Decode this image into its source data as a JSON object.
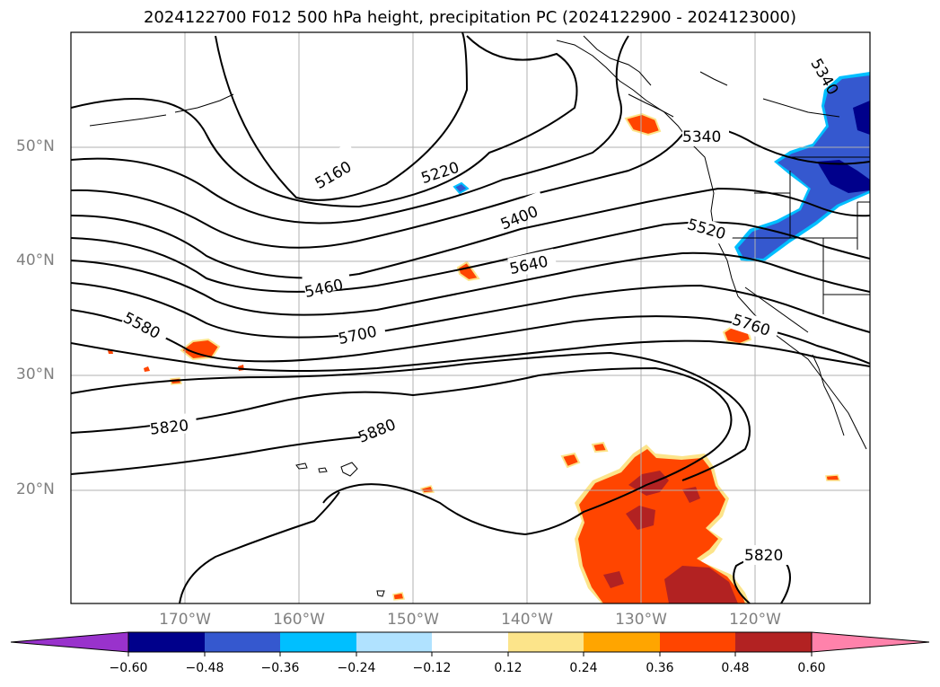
{
  "title": "2024122700 F012 500 hPa height, precipitation PC (2024122900 - 2024123000)",
  "lat_labels": [
    "50°N",
    "40°N",
    "30°N",
    "20°N"
  ],
  "lon_labels": [
    "170°W",
    "160°W",
    "150°W",
    "140°W",
    "130°W",
    "120°W"
  ],
  "contour_labels": [
    "5160",
    "5220",
    "5340",
    "5400",
    "5460",
    "5520",
    "5580",
    "5640",
    "5700",
    "5760",
    "5820",
    "5880",
    "5340",
    "5820"
  ],
  "colorbar": {
    "ticks": [
      "−0.60",
      "−0.48",
      "−0.36",
      "−0.24",
      "−0.12",
      "0.12",
      "0.24",
      "0.36",
      "0.48",
      "0.60"
    ],
    "colors": [
      "#9932cc",
      "#00008b",
      "#3558cf",
      "#00bfff",
      "#b0e2ff",
      "#ffffff",
      "#fce48a",
      "#ffa500",
      "#ff4500",
      "#b22222",
      "#ff82ab"
    ]
  },
  "precip_colors": {
    "red": "#ff4500",
    "darkred": "#b22222",
    "orange": "#ffa500",
    "yellow": "#fce48a",
    "blue": "#3558cf",
    "navy": "#00008b",
    "cyan": "#00bfff"
  }
}
